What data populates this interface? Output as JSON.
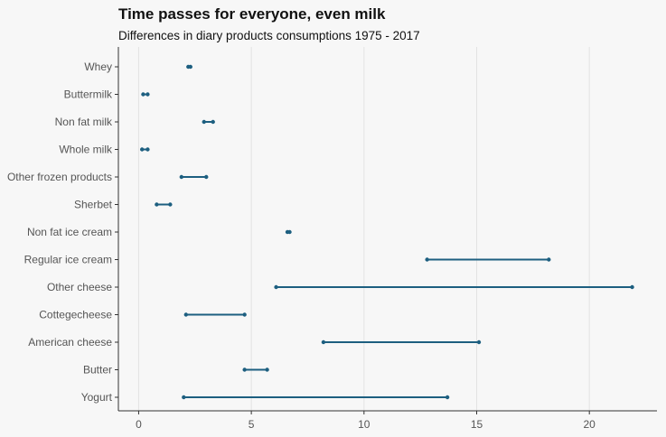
{
  "chart_data": {
    "type": "dumbbell",
    "title": "Time passes for everyone, even milk",
    "subtitle": "Differences in diary products consumptions 1975 - 2017",
    "xlabel": "",
    "ylabel": "",
    "xlim": [
      -0.9,
      23.0
    ],
    "xticks": [
      0,
      5,
      10,
      15,
      20
    ],
    "grid": "vertical",
    "legend": "none",
    "colors": {
      "segment": "#1d5f80",
      "grid": "#e3e3e3",
      "axis": "#333333",
      "background": "#f7f7f7",
      "text": "#555555"
    },
    "categories": [
      "Whey",
      "Buttermilk",
      "Non fat milk",
      "Whole milk",
      "Other frozen products",
      "Sherbet",
      "Non fat ice cream",
      "Regular ice cream",
      "Other cheese",
      "Cottegecheese",
      "American cheese",
      "Butter",
      "Yogurt"
    ],
    "ranges": [
      [
        2.2,
        2.3
      ],
      [
        0.2,
        0.4
      ],
      [
        2.9,
        3.3
      ],
      [
        0.15,
        0.4
      ],
      [
        1.9,
        3.0
      ],
      [
        0.8,
        1.4
      ],
      [
        6.6,
        6.7
      ],
      [
        12.8,
        18.2
      ],
      [
        6.1,
        21.9
      ],
      [
        2.1,
        4.7
      ],
      [
        8.2,
        15.1
      ],
      [
        4.7,
        5.7
      ],
      [
        2.0,
        13.7
      ]
    ]
  }
}
